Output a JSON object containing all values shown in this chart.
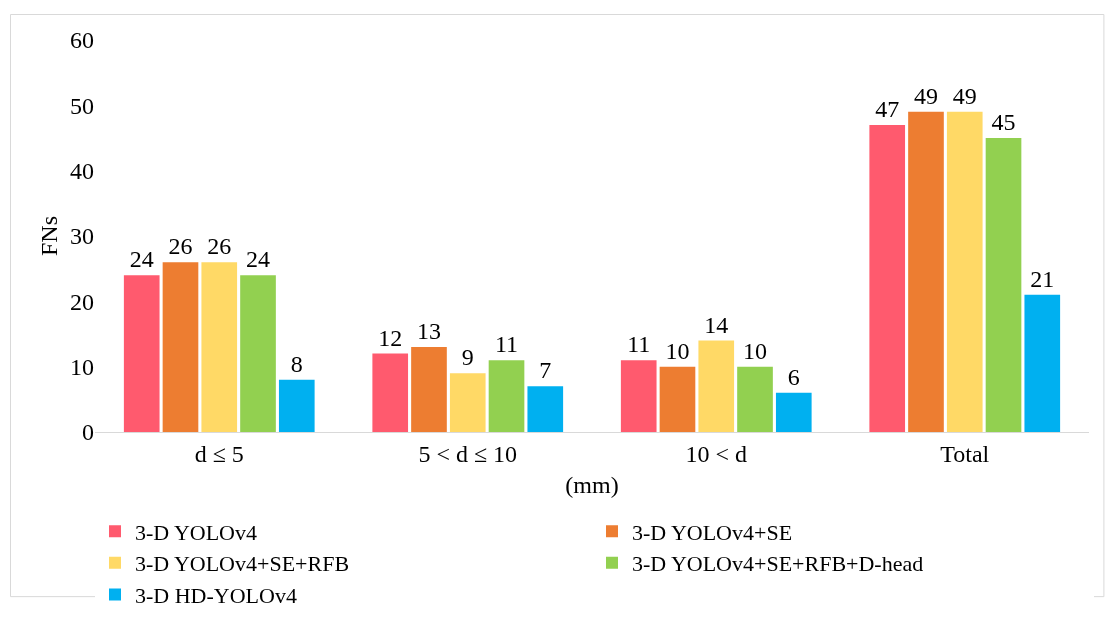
{
  "chart_data": {
    "type": "bar",
    "xlabel": "(mm)",
    "ylabel": "FNs",
    "categories": [
      "d ≤ 5",
      "5 < d ≤ 10",
      "10 < d",
      "Total"
    ],
    "series": [
      {
        "name": "3-D YOLOv4",
        "color": "#ff5a6e",
        "values": [
          24,
          12,
          11,
          47
        ]
      },
      {
        "name": "3-D YOLOv4+SE",
        "color": "#ed7d31",
        "values": [
          26,
          13,
          10,
          49
        ]
      },
      {
        "name": "3-D YOLOv4+SE+RFB",
        "color": "#ffd966",
        "values": [
          26,
          9,
          14,
          49
        ]
      },
      {
        "name": "3-D YOLOv4+SE+RFB+D-head",
        "color": "#92d050",
        "values": [
          24,
          11,
          10,
          45
        ]
      },
      {
        "name": "3-D HD-YOLOv4",
        "color": "#00b0f0",
        "values": [
          8,
          7,
          6,
          21
        ]
      }
    ],
    "ylim": [
      0,
      60
    ],
    "yticks": [
      0,
      10,
      20,
      30,
      40,
      50,
      60
    ],
    "grid": false,
    "legend": "bottom",
    "data_labels": true
  }
}
